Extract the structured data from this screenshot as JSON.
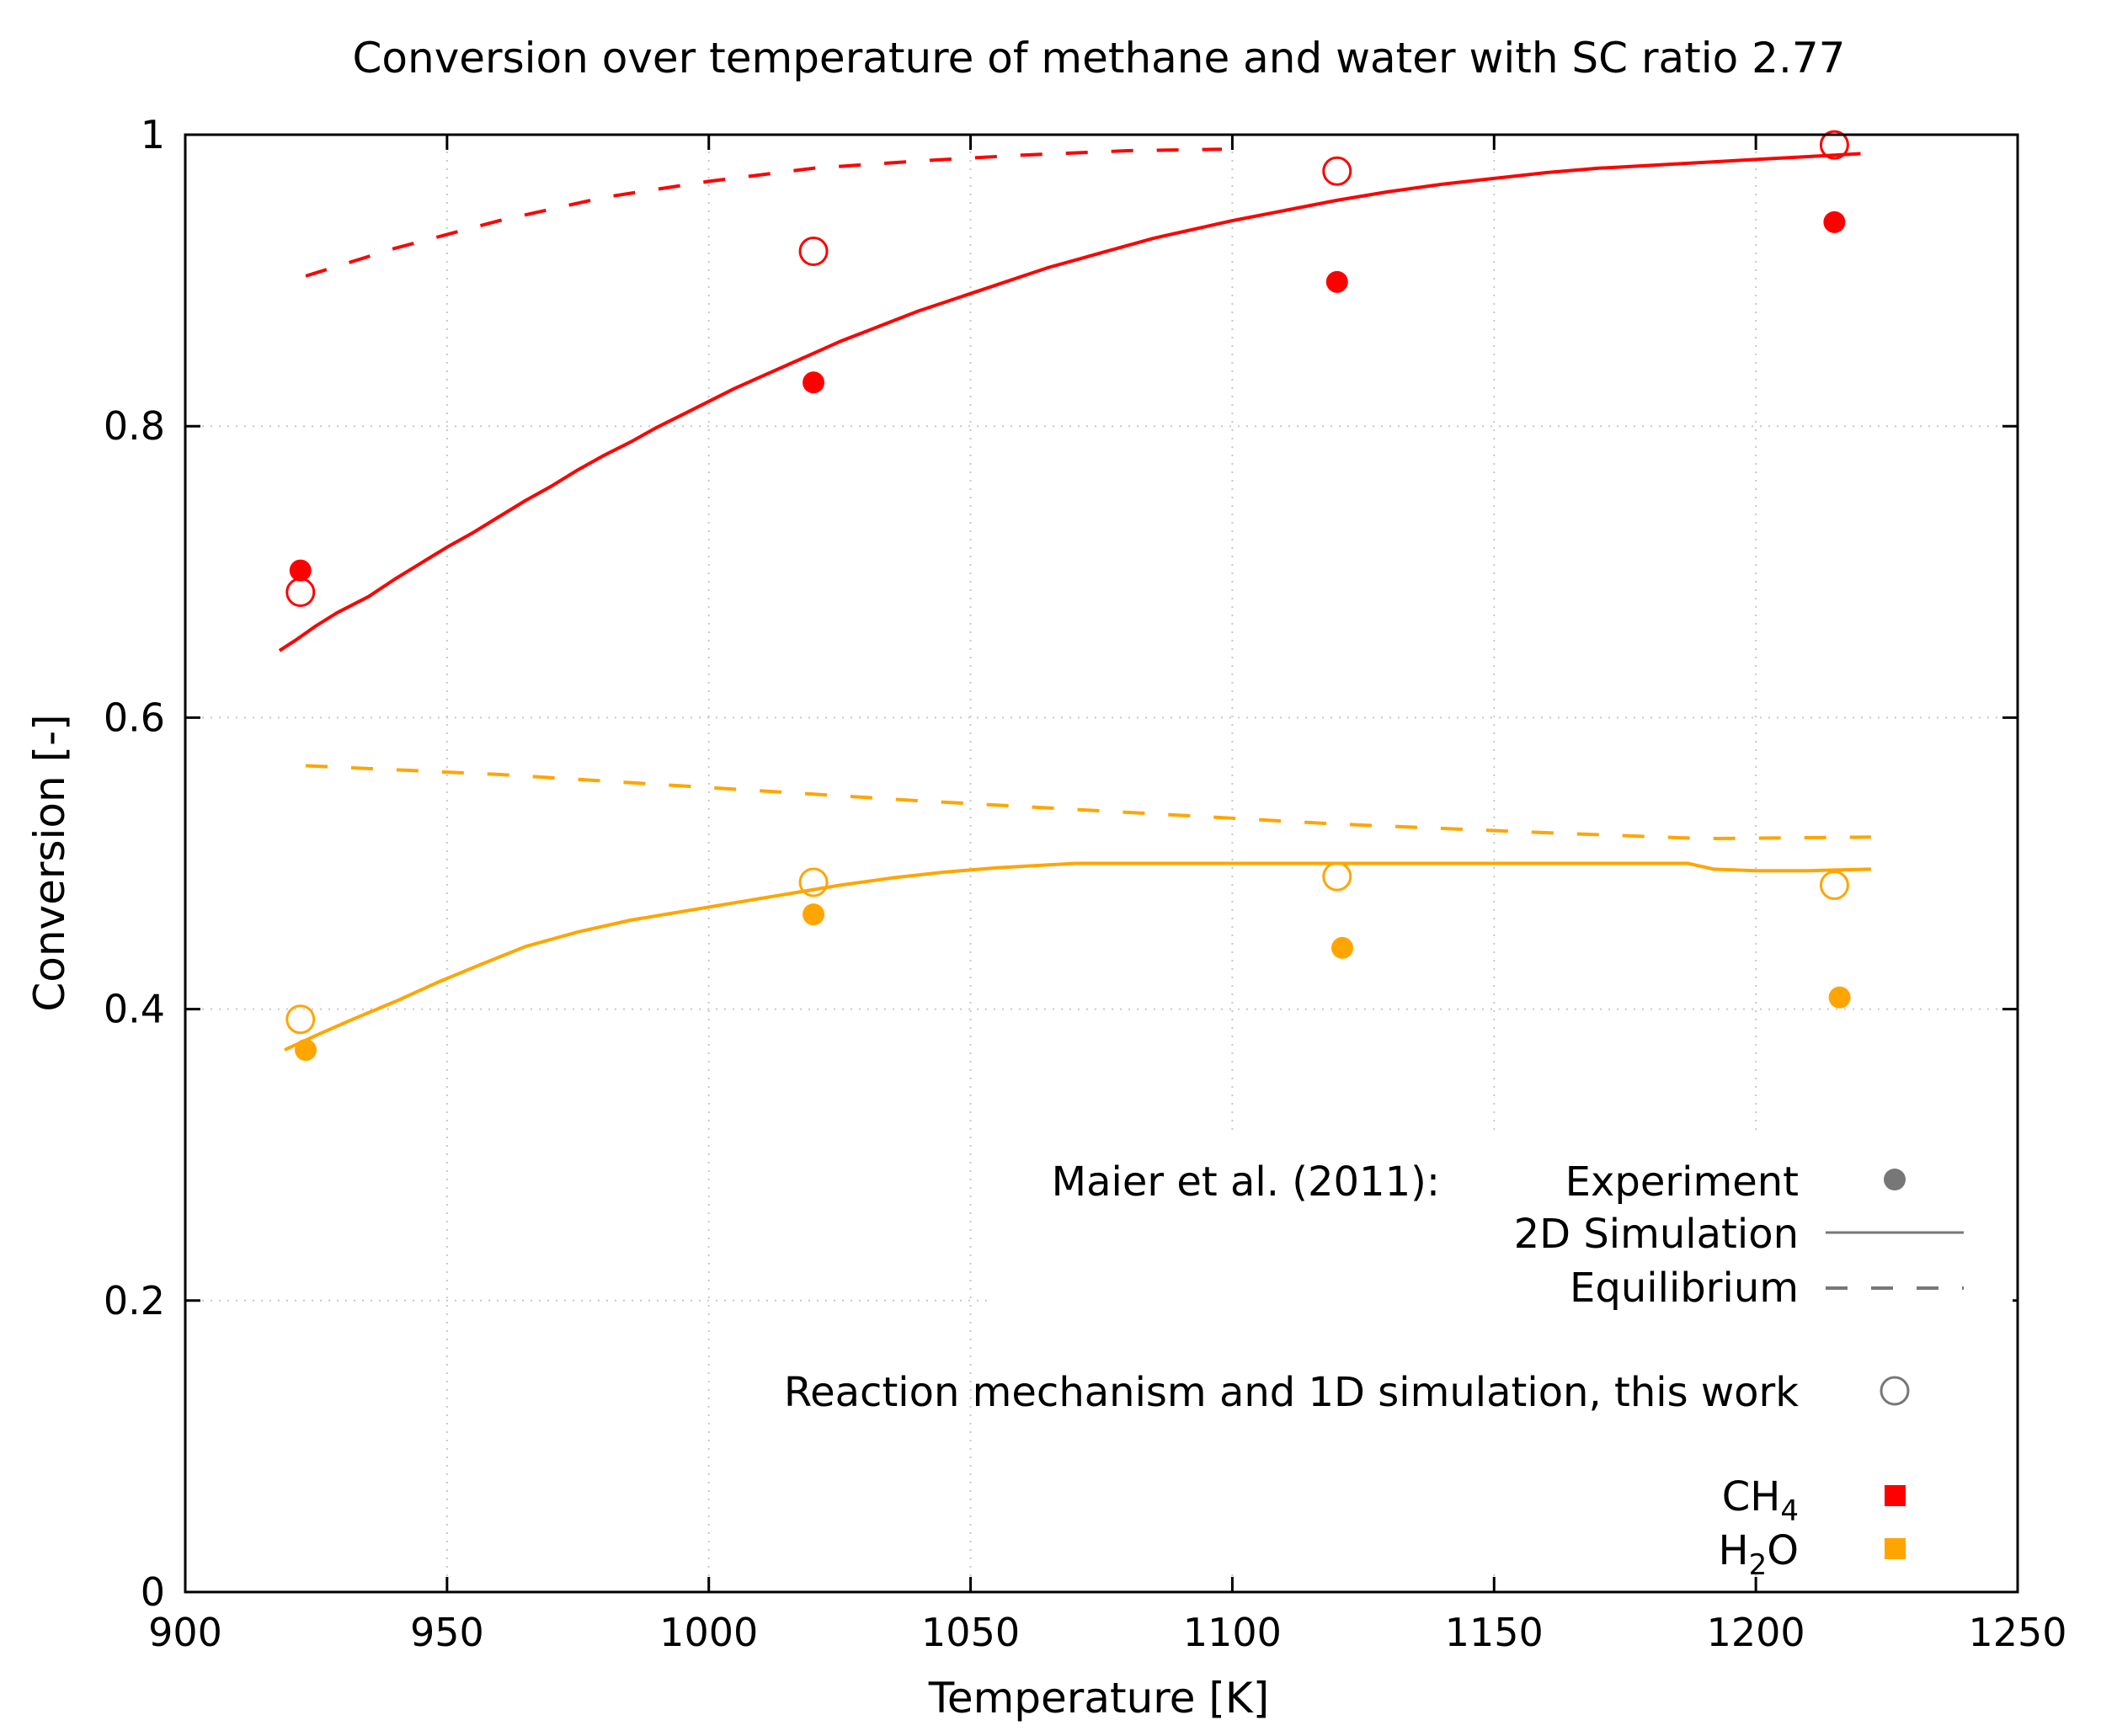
{
  "chart_data": {
    "type": "line",
    "title": "Conversion over temperature of methane and water with SC ratio 2.77",
    "xlabel": "Temperature [K]",
    "ylabel": "Conversion [-]",
    "xlim": [
      900,
      1250
    ],
    "ylim": [
      0,
      1
    ],
    "xticks": [
      900,
      950,
      1000,
      1050,
      1100,
      1150,
      1200,
      1250
    ],
    "yticks": [
      0,
      0.2,
      0.4,
      0.6,
      0.8,
      1
    ],
    "ytick_labels": [
      "0",
      "0.2",
      "0.4",
      "0.6",
      "0.8",
      "1"
    ],
    "grid": "dotted",
    "colors": {
      "ch4": "#ff0000",
      "h2o": "#ffa500",
      "legend_gray": "#777777"
    },
    "series": [
      {
        "name": "CH4 2D Simulation",
        "style": "solid",
        "color": "#ff0000",
        "x": [
          918,
          921,
          925,
          929,
          935,
          940,
          945,
          950,
          955,
          960,
          965,
          970,
          975,
          980,
          985,
          990,
          995,
          1000,
          1005,
          1010,
          1015,
          1020,
          1025,
          1030,
          1035,
          1040,
          1045,
          1050,
          1055,
          1060,
          1065,
          1070,
          1075,
          1080,
          1085,
          1090,
          1095,
          1100,
          1110,
          1120,
          1130,
          1140,
          1150,
          1160,
          1170,
          1180,
          1190,
          1200,
          1210,
          1220
        ],
        "y": [
          0.646,
          0.653,
          0.663,
          0.672,
          0.683,
          0.695,
          0.706,
          0.717,
          0.727,
          0.738,
          0.749,
          0.759,
          0.77,
          0.78,
          0.789,
          0.799,
          0.808,
          0.817,
          0.826,
          0.834,
          0.842,
          0.85,
          0.858,
          0.865,
          0.872,
          0.879,
          0.885,
          0.891,
          0.897,
          0.903,
          0.909,
          0.914,
          0.919,
          0.924,
          0.929,
          0.933,
          0.937,
          0.941,
          0.948,
          0.955,
          0.961,
          0.966,
          0.97,
          0.974,
          0.977,
          0.979,
          0.981,
          0.983,
          0.985,
          0.987
        ]
      },
      {
        "name": "CH4 Equilibrium",
        "style": "dashed",
        "color": "#ff0000",
        "x": [
          923,
          940,
          960,
          980,
          1000,
          1020,
          1040,
          1060,
          1080,
          1098
        ],
        "y": [
          0.903,
          0.922,
          0.941,
          0.957,
          0.968,
          0.977,
          0.982,
          0.986,
          0.989,
          0.99
        ]
      },
      {
        "name": "H2O 2D Simulation",
        "style": "solid",
        "color": "#ffa500",
        "x": [
          919,
          925,
          932,
          940,
          948,
          956,
          965,
          975,
          985,
          995,
          1005,
          1015,
          1025,
          1035,
          1045,
          1055,
          1065,
          1070,
          1080,
          1100,
          1120,
          1140,
          1160,
          1180,
          1187,
          1192,
          1200,
          1210,
          1222
        ],
        "y": [
          0.372,
          0.382,
          0.393,
          0.405,
          0.418,
          0.43,
          0.443,
          0.453,
          0.461,
          0.467,
          0.473,
          0.479,
          0.485,
          0.49,
          0.494,
          0.497,
          0.499,
          0.5,
          0.5,
          0.5,
          0.5,
          0.5,
          0.5,
          0.5,
          0.5,
          0.496,
          0.495,
          0.495,
          0.496
        ]
      },
      {
        "name": "H2O Equilibrium",
        "style": "dashed",
        "color": "#ffa500",
        "x": [
          923,
          960,
          1000,
          1040,
          1080,
          1120,
          1160,
          1190,
          1222
        ],
        "y": [
          0.567,
          0.561,
          0.552,
          0.543,
          0.535,
          0.527,
          0.521,
          0.517,
          0.518
        ]
      },
      {
        "name": "CH4 Experiment",
        "marker": "filled-circle",
        "color": "#ff0000",
        "x": [
          922,
          1020,
          1120,
          1215
        ],
        "y": [
          0.701,
          0.83,
          0.899,
          0.94
        ]
      },
      {
        "name": "CH4 1D simulation",
        "marker": "open-circle",
        "color": "#ff0000",
        "x": [
          922,
          1020,
          1120,
          1215
        ],
        "y": [
          0.686,
          0.92,
          0.975,
          0.993
        ]
      },
      {
        "name": "H2O Experiment",
        "marker": "filled-circle",
        "color": "#ffa500",
        "x": [
          923,
          1020,
          1121,
          1216
        ],
        "y": [
          0.372,
          0.465,
          0.442,
          0.408
        ]
      },
      {
        "name": "H2O 1D simulation",
        "marker": "open-circle",
        "color": "#ffa500",
        "x": [
          922,
          1020,
          1120,
          1215
        ],
        "y": [
          0.393,
          0.487,
          0.491,
          0.485
        ]
      }
    ],
    "legend": {
      "placement": "bottom-right",
      "source": "Maier et al. (2011):",
      "experiment": "Experiment",
      "simulation_2d": "2D Simulation",
      "equilibrium": "Equilibrium",
      "this_work": "Reaction mechanism and 1D simulation, this work",
      "ch4_main": "CH",
      "ch4_sub": "4",
      "h2o_main": "H",
      "h2o_sub": "2",
      "h2o_tail": "O"
    }
  }
}
